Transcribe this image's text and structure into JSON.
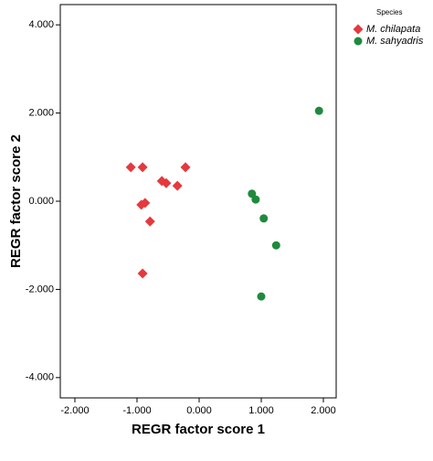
{
  "chart_data": {
    "type": "scatter",
    "x_label": "REGR factor score   1",
    "y_label": "REGR factor score   2",
    "legend_title": "Species",
    "legend": "outside-top-right",
    "xlim": [
      -2.235,
      2.206
    ],
    "ylim": [
      -4.46,
      4.46
    ],
    "xticks": [
      {
        "value": -2,
        "label": "-2.000"
      },
      {
        "value": -1,
        "label": "-1.000"
      },
      {
        "value": 0,
        "label": "0.000"
      },
      {
        "value": 1,
        "label": "1.000"
      },
      {
        "value": 2,
        "label": "2.000"
      }
    ],
    "yticks": [
      {
        "value": -4,
        "label": "-4.000"
      },
      {
        "value": -2,
        "label": "-2.000"
      },
      {
        "value": 0,
        "label": "0.000"
      },
      {
        "value": 2,
        "label": "2.000"
      },
      {
        "value": 4,
        "label": "4.000"
      }
    ],
    "series": [
      {
        "name": "M. chilapata",
        "color": "#e5393d",
        "marker": "diamond",
        "x": [
          -1.1,
          -0.91,
          -0.22,
          -0.6,
          -0.53,
          -0.35,
          -0.93,
          -0.87,
          -0.79,
          -0.91
        ],
        "values": [
          0.77,
          0.77,
          0.77,
          0.46,
          0.41,
          0.35,
          -0.08,
          -0.04,
          -0.46,
          -1.64
        ]
      },
      {
        "name": "M. sahyadris",
        "color": "#1e8a3e",
        "marker": "circle",
        "x": [
          1.93,
          0.85,
          0.91,
          1.04,
          1.24,
          1.0
        ],
        "values": [
          2.05,
          0.17,
          0.04,
          -0.39,
          -1.0,
          -2.16
        ]
      }
    ]
  }
}
